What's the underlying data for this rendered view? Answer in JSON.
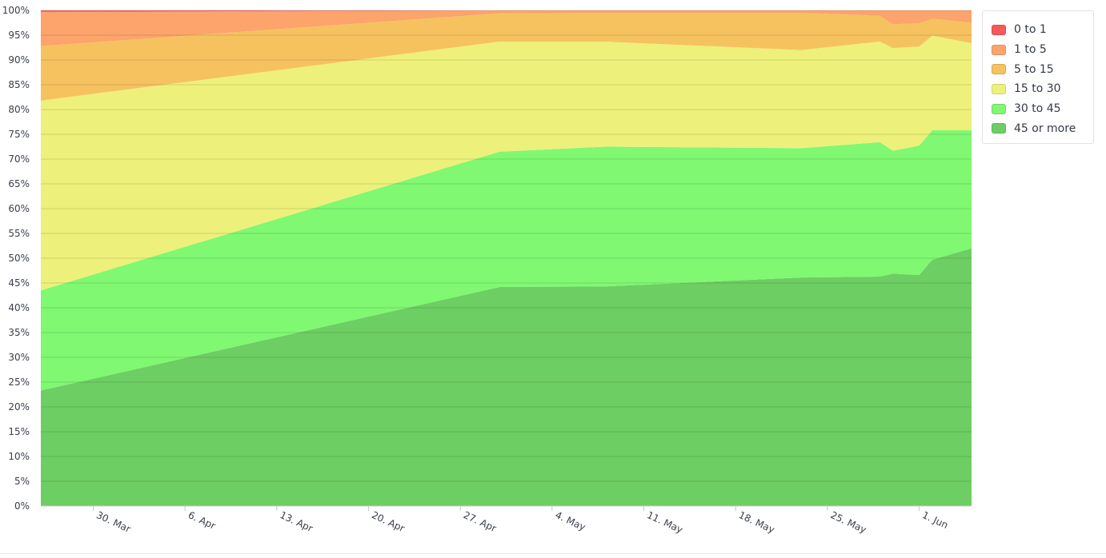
{
  "chart_data": {
    "type": "area",
    "stacking": "percent",
    "x": [
      "2020-03-26",
      "2020-04-30",
      "2020-05-08",
      "2020-05-23",
      "2020-05-29",
      "2020-05-30",
      "2020-06-01",
      "2020-06-02",
      "2020-06-05"
    ],
    "x_ticks": [
      "30. Mar",
      "6. Apr",
      "13. Apr",
      "20. Apr",
      "27. Apr",
      "4. May",
      "11. May",
      "18. May",
      "25. May",
      "1. Jun"
    ],
    "y_ticks": [
      "0%",
      "5%",
      "10%",
      "15%",
      "20%",
      "25%",
      "30%",
      "35%",
      "40%",
      "45%",
      "50%",
      "55%",
      "60%",
      "65%",
      "70%",
      "75%",
      "80%",
      "85%",
      "90%",
      "95%",
      "100%"
    ],
    "ylim": [
      0,
      100
    ],
    "grid": true,
    "legend_position": "top-right",
    "series": [
      {
        "name": "45 or more",
        "color": "#6dce63",
        "values": [
          23.3,
          44.2,
          44.3,
          46.1,
          46.3,
          46.9,
          46.6,
          49.7,
          52.0
        ]
      },
      {
        "name": "30 to 45",
        "color": "#80f872",
        "values": [
          20.2,
          27.3,
          28.2,
          26.1,
          27.1,
          24.8,
          26.1,
          26.1,
          23.8
        ]
      },
      {
        "name": "15 to 30",
        "color": "#edf07a",
        "values": [
          38.3,
          22.2,
          21.2,
          19.8,
          20.3,
          20.7,
          20.0,
          19.1,
          17.6
        ]
      },
      {
        "name": "5 to 15",
        "color": "#f6c260",
        "values": [
          11.0,
          5.7,
          5.8,
          7.5,
          5.2,
          4.8,
          4.7,
          3.4,
          4.1
        ]
      },
      {
        "name": "1 to 5",
        "color": "#fca46b",
        "values": [
          6.9,
          0.6,
          0.5,
          0.5,
          1.1,
          2.8,
          2.6,
          1.7,
          2.5
        ]
      },
      {
        "name": "0 to 1",
        "color": "#f45a5a",
        "values": [
          0.3,
          0.0,
          0.0,
          0.0,
          0.0,
          0.0,
          0.0,
          0.0,
          0.0
        ]
      }
    ],
    "legend": [
      "0 to 1",
      "1 to 5",
      "5 to 15",
      "15 to 30",
      "30 to 45",
      "45 or more"
    ]
  }
}
